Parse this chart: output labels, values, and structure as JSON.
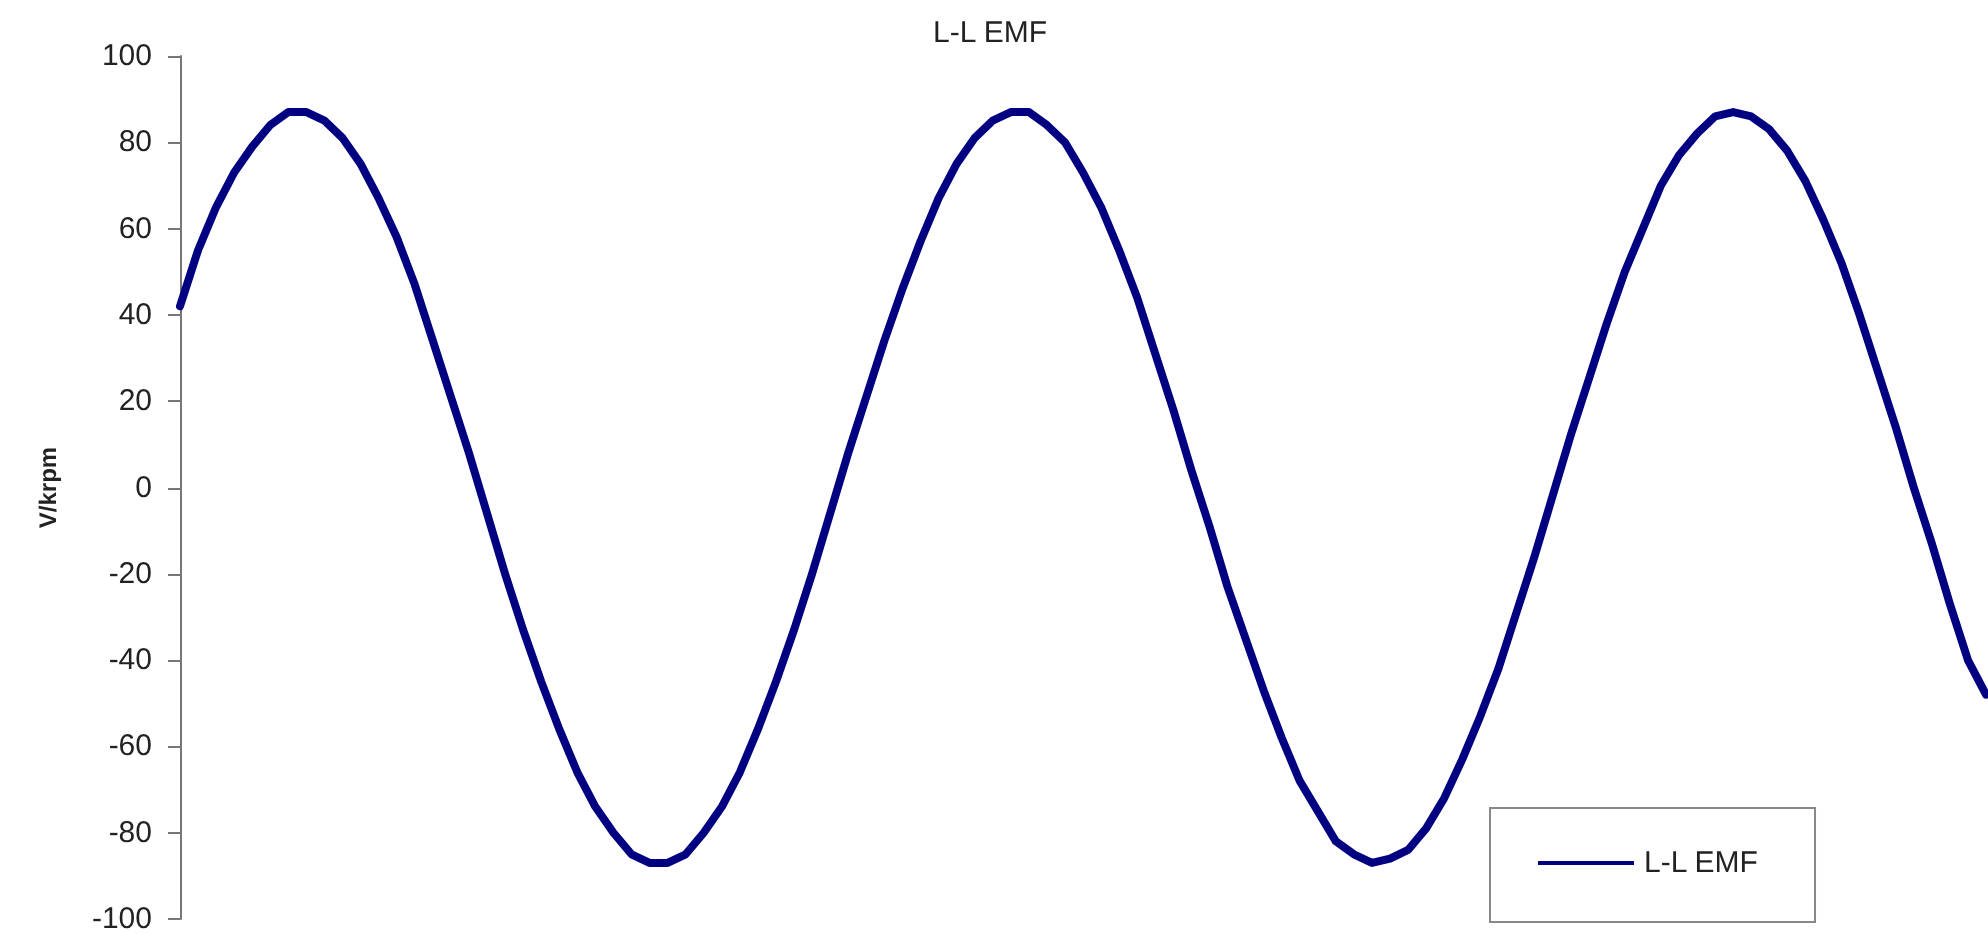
{
  "chart_data": {
    "type": "line",
    "title": "L-L EMF",
    "ylabel": "V/krpm",
    "categories": [
      null,
      null,
      null,
      null,
      null,
      null,
      null,
      null,
      null,
      null,
      null,
      null,
      null,
      null,
      null,
      null,
      null,
      null,
      null,
      null,
      null,
      null,
      null,
      null,
      null,
      null,
      null,
      null,
      null,
      null,
      null,
      null,
      null,
      null,
      null,
      null,
      null,
      null,
      null,
      null,
      null,
      null,
      null,
      null,
      null,
      null,
      null,
      null,
      null,
      null,
      null,
      null,
      null,
      null,
      null,
      null,
      null,
      null,
      null,
      null,
      null,
      null,
      null,
      null,
      null,
      null,
      null,
      null,
      null,
      null,
      null,
      null,
      null,
      null,
      null,
      null,
      null,
      null,
      null,
      null,
      null,
      null,
      null,
      null,
      null,
      null,
      null,
      null,
      null,
      null,
      null,
      null,
      null,
      null,
      null,
      null,
      null,
      null,
      null,
      null,
      null
    ],
    "series": [
      {
        "name": "L-L EMF",
        "color": "#000080",
        "values": [
          42,
          55,
          65,
          73,
          79,
          84,
          87,
          87,
          85,
          81,
          75,
          67,
          58,
          47,
          34,
          21,
          8,
          -6,
          -20,
          -33,
          -45,
          -56,
          -66,
          -74,
          -80,
          -85,
          -87,
          -87,
          -85,
          -80,
          -74,
          -66,
          -56,
          -45,
          -33,
          -20,
          -6,
          8,
          21,
          34,
          46,
          57,
          67,
          75,
          81,
          85,
          87,
          87,
          84,
          80,
          73,
          65,
          55,
          44,
          31,
          18,
          4,
          -9,
          -23,
          -35,
          -47,
          -58,
          -68,
          -75,
          -82,
          -85,
          -87,
          -86,
          -84,
          -79,
          -72,
          -63,
          -53,
          -42,
          -29,
          -16,
          -2,
          12,
          25,
          38,
          50,
          60,
          70,
          77,
          82,
          86,
          87,
          86,
          83,
          78,
          71,
          62,
          52,
          40,
          27,
          14,
          0,
          -13,
          -27,
          -40,
          -48
        ]
      }
    ],
    "ylim": [
      -100,
      100
    ],
    "yticks": [
      -100,
      -80,
      -60,
      -40,
      -20,
      0,
      20,
      40,
      60,
      80,
      100
    ],
    "grid": false,
    "legend": "bottom right",
    "line_style": "solid",
    "tick_labels": "y"
  }
}
